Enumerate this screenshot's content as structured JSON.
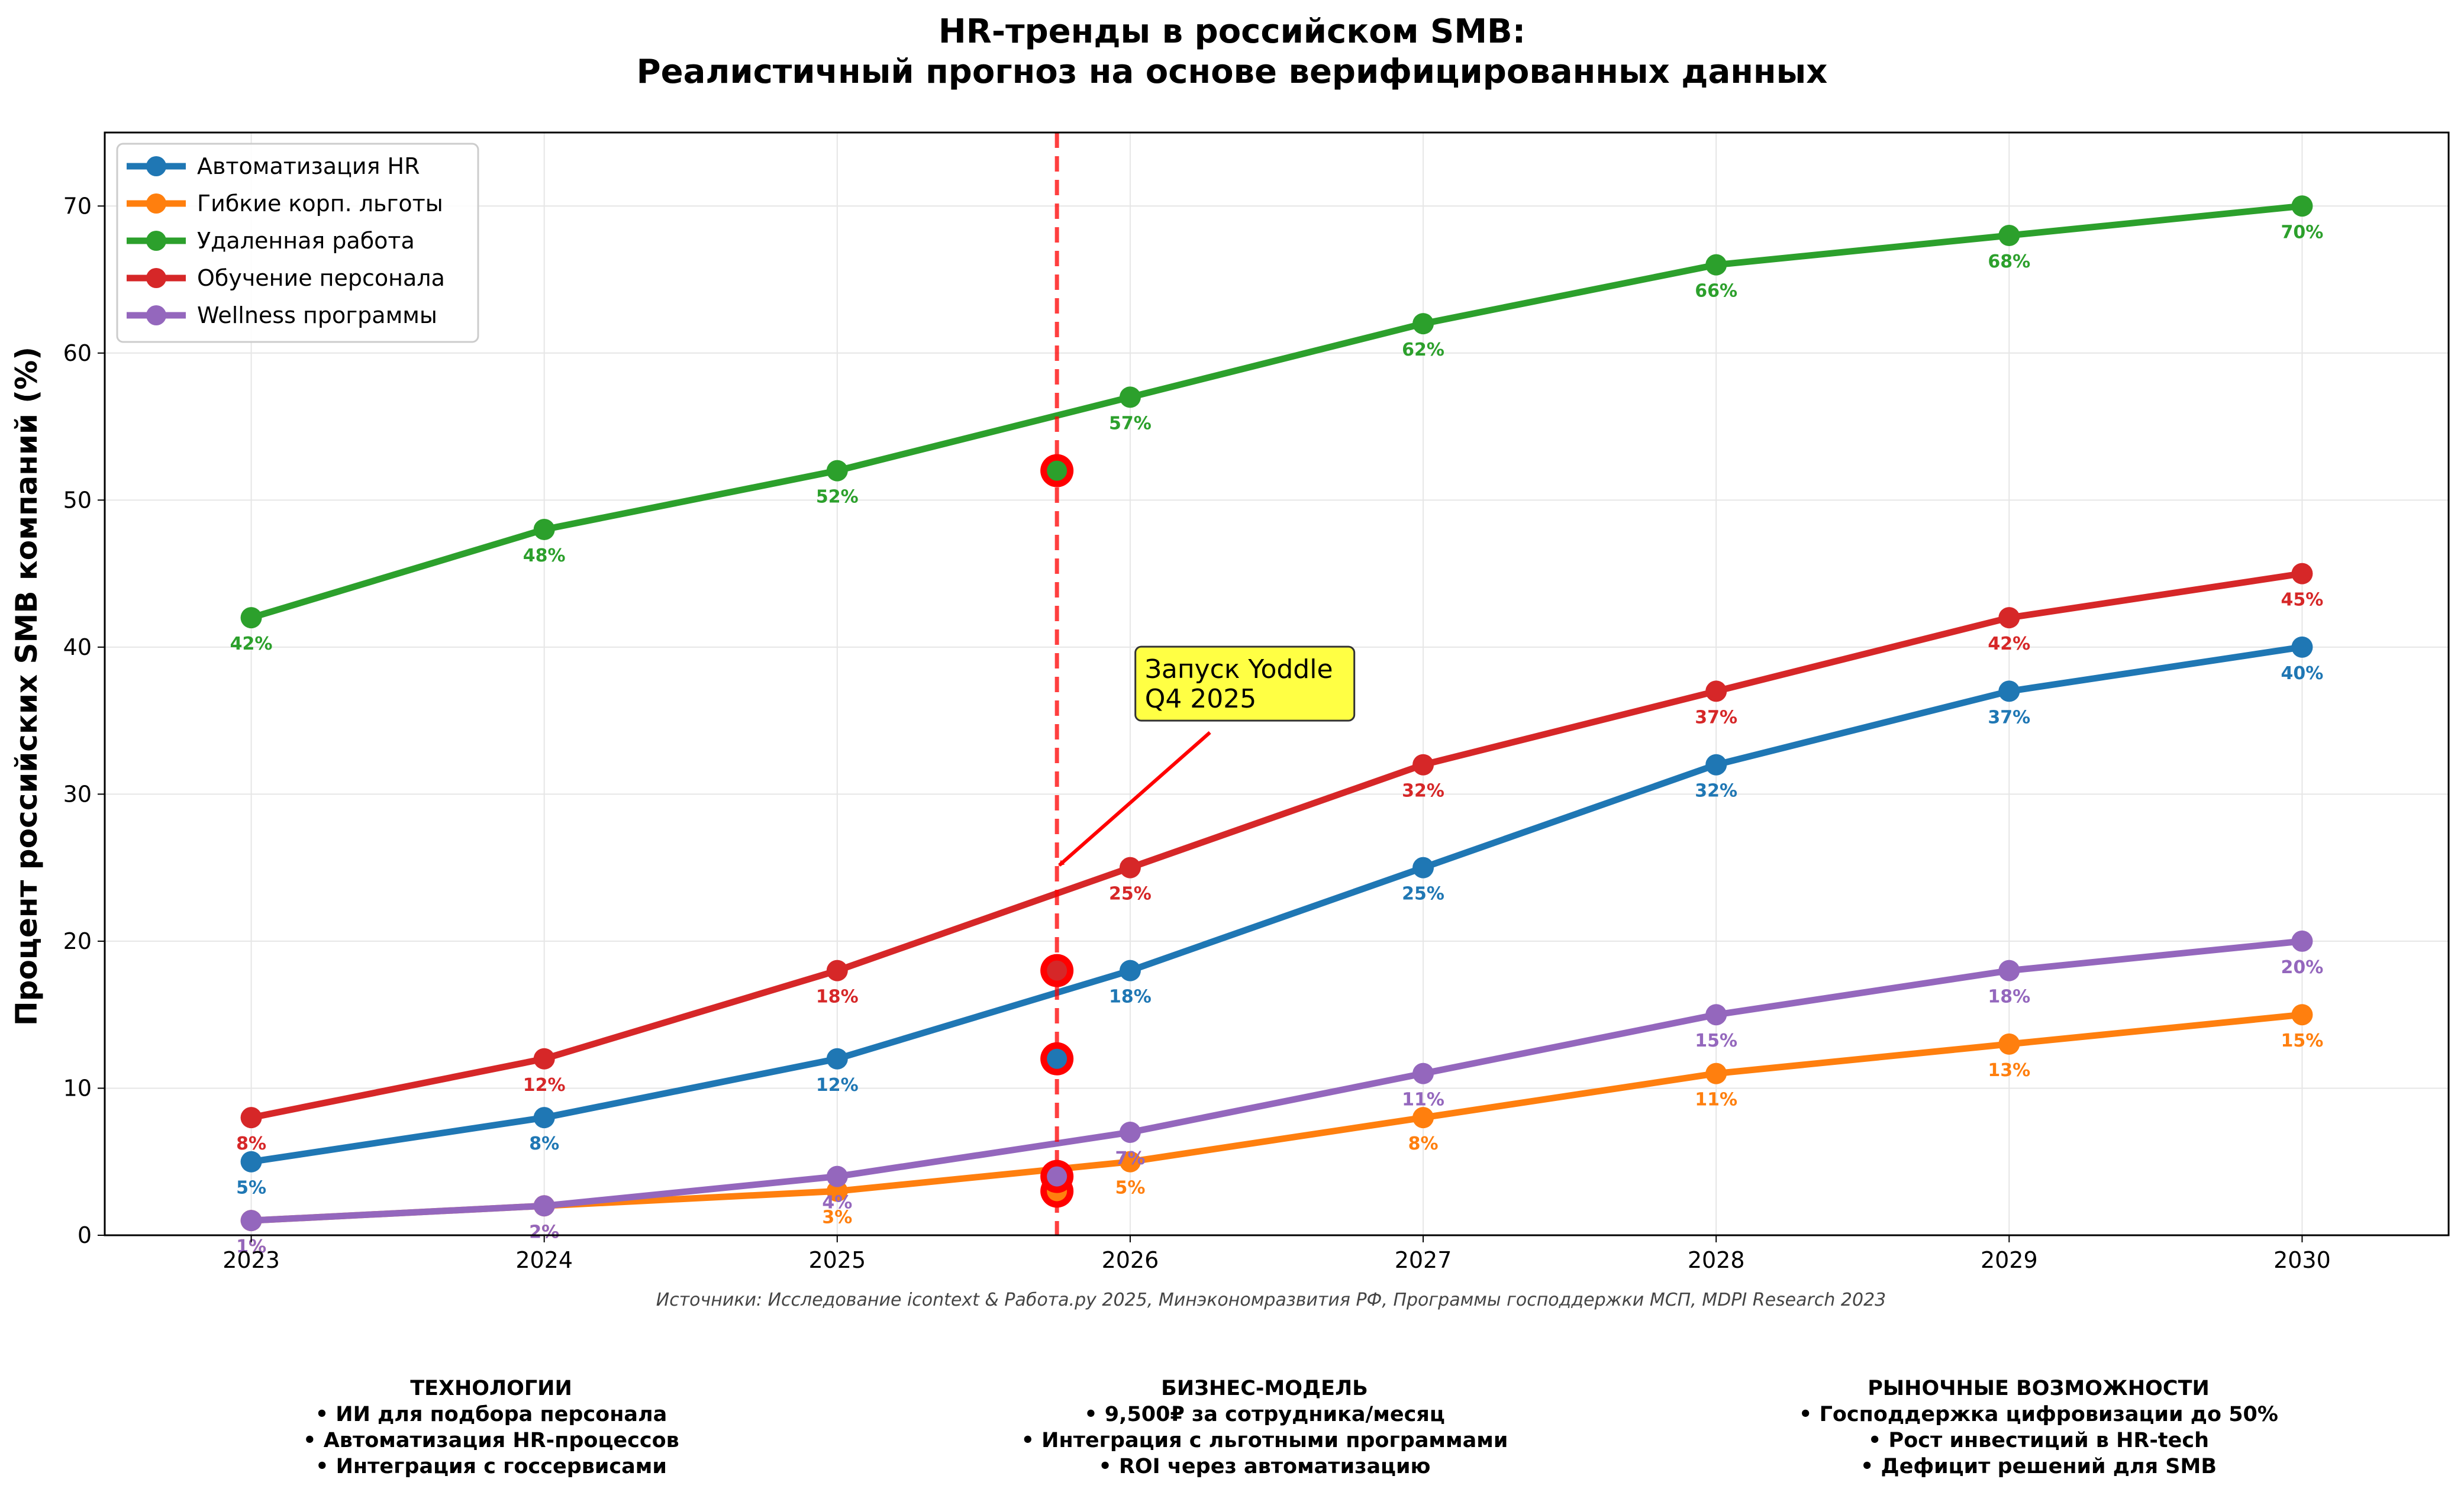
{
  "chart_data": {
    "type": "line",
    "title": "HR-тренды в российском SMB:",
    "subtitle": "Реалистичный прогноз на основе верифицированных данных",
    "xlabel": "",
    "ylabel": "Процент российских SMB компаний (%)",
    "x": [
      2023,
      2024,
      2025,
      2026,
      2027,
      2028,
      2029,
      2030
    ],
    "xlim": [
      2022.5,
      2030.5
    ],
    "ylim": [
      0,
      75
    ],
    "yticks": [
      0,
      10,
      20,
      30,
      40,
      50,
      60,
      70
    ],
    "grid": true,
    "legend_position": "top-left",
    "series": [
      {
        "name": "Автоматизация HR",
        "color": "#1f77b4",
        "values": [
          5,
          8,
          12,
          18,
          25,
          32,
          37,
          40
        ]
      },
      {
        "name": "Гибкие корп. льготы",
        "color": "#ff7f0e",
        "values": [
          1,
          2,
          3,
          5,
          8,
          11,
          13,
          15
        ]
      },
      {
        "name": "Удаленная работа",
        "color": "#2ca02c",
        "values": [
          42,
          48,
          52,
          57,
          62,
          66,
          68,
          70
        ]
      },
      {
        "name": "Обучение персонала",
        "color": "#d62728",
        "values": [
          8,
          12,
          18,
          25,
          32,
          37,
          42,
          45
        ]
      },
      {
        "name": "Wellness программы",
        "color": "#9467bd",
        "values": [
          1,
          2,
          4,
          7,
          11,
          15,
          18,
          20
        ]
      }
    ],
    "launch_marker": {
      "x": 2025.75,
      "color": "#ff0000",
      "highlight_values": [
        12,
        3,
        52,
        18,
        4
      ]
    },
    "annotation": {
      "lines": [
        "Запуск Yoddle",
        "Q4 2025"
      ],
      "target_x": 2025.75,
      "target_y": 25,
      "text_x": 2026.05,
      "text_y": 35,
      "box_color": "#ffff44"
    },
    "source": "Источники: Исследование icontext & Работа.ру 2025, Минэкономразвития РФ, Программы господдержки МСП, MDPI Research 2023"
  },
  "footer": {
    "technologies": {
      "title": "ТЕХНОЛОГИИ",
      "items": [
        "• ИИ для подбора персонала",
        "• Автоматизация HR-процессов",
        "• Интеграция с госсервисами"
      ]
    },
    "business_model": {
      "title": "БИЗНЕС-МОДЕЛЬ",
      "items": [
        "• 9,500₽ за сотрудника/месяц",
        "• Интеграция с льготными программами",
        "• ROI через автоматизацию"
      ]
    },
    "market": {
      "title": "РЫНОЧНЫЕ ВОЗМОЖНОСТИ",
      "items": [
        "• Господдержка цифровизации до 50%",
        "• Рост инвестиций в HR-tech",
        "• Дефицит решений для SMB"
      ]
    }
  }
}
